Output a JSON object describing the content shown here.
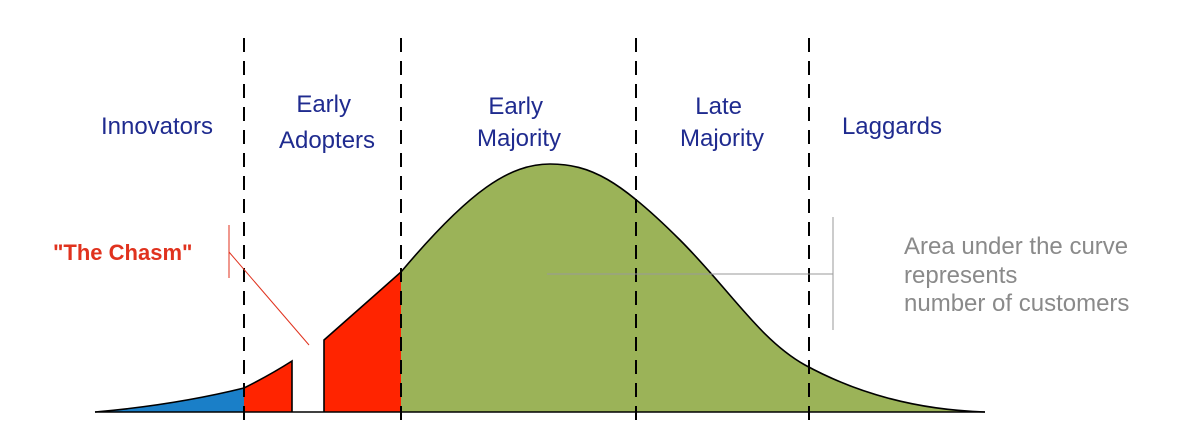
{
  "segments": {
    "innovators": "Innovators",
    "early_adopters": [
      "Early",
      "Adopters"
    ],
    "early_majority": [
      "Early",
      "Majority"
    ],
    "late_majority": [
      "Late",
      "Majority"
    ],
    "laggards": "Laggards"
  },
  "chasm_label": "\"The Chasm\"",
  "area_note": [
    "Area under the curve",
    "represents",
    "number of customers"
  ],
  "colors": {
    "innovators_fill": "#1a7fc8",
    "early_adopters_fill": "#ff2400",
    "majority_fill": "#9bb358",
    "segment_text": "#1f2b8f",
    "chasm_text": "#e0321e",
    "note_text": "#8a8a8a"
  }
}
